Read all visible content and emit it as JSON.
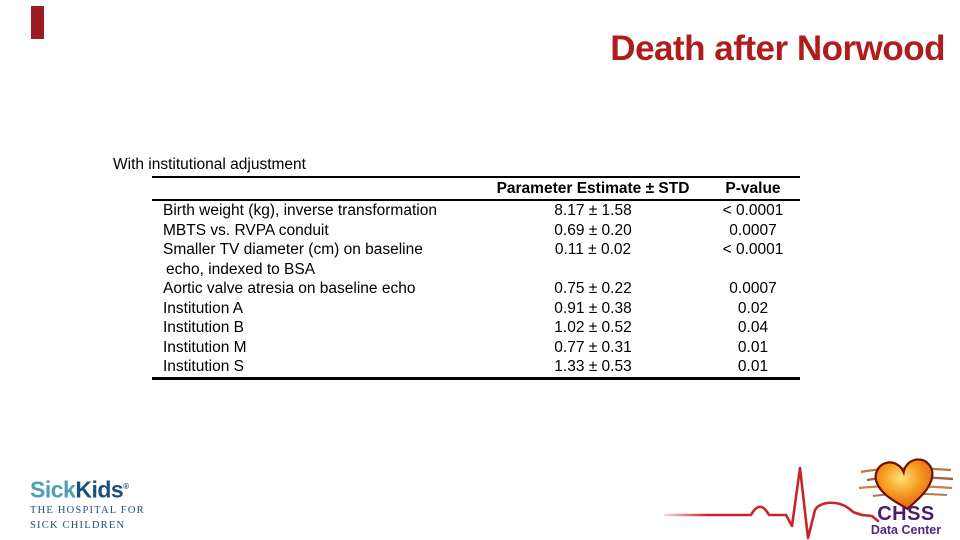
{
  "slide": {
    "title": "Death after Norwood"
  },
  "colors": {
    "title_red": "#B01C1C",
    "accent_red": "#9E1B24",
    "table_text": "#000000",
    "sickkids_teal": "#4E9FB5",
    "sickkids_navy": "#1A507E",
    "chss_purple": "#45206E",
    "ekg_red": "#C8252B",
    "heart_orange": "#F59B1E"
  },
  "table": {
    "caption": "With institutional adjustment",
    "header_estimate": "Parameter Estimate ± STD",
    "header_pvalue": "P-value",
    "rows": [
      {
        "param": "Birth weight (kg), inverse transformation",
        "param2": "",
        "estimate": "8.17 ± 1.58",
        "p": "< 0.0001"
      },
      {
        "param": "MBTS vs. RVPA conduit",
        "param2": "",
        "estimate": "0.69 ± 0.20",
        "p": "0.0007"
      },
      {
        "param": "Smaller TV diameter (cm) on baseline",
        "param2": "echo, indexed to BSA",
        "estimate": "0.11 ± 0.02",
        "p": "< 0.0001"
      },
      {
        "param": "Aortic valve atresia on baseline echo",
        "param2": "",
        "estimate": "0.75 ± 0.22",
        "p": "0.0007"
      },
      {
        "param": "Institution A",
        "param2": "",
        "estimate": "0.91 ± 0.38",
        "p": "0.02"
      },
      {
        "param": "Institution B",
        "param2": "",
        "estimate": "1.02 ± 0.52",
        "p": "0.04"
      },
      {
        "param": "Institution M",
        "param2": "",
        "estimate": "0.77 ± 0.31",
        "p": "0.01"
      },
      {
        "param": "Institution S",
        "param2": "",
        "estimate": "1.33 ± 0.53",
        "p": "0.01"
      }
    ]
  },
  "footer": {
    "sickkids": {
      "word1": "Sick",
      "word2": "Kids",
      "reg": "®",
      "tagline1": "THE HOSPITAL FOR",
      "tagline2": "SICK CHILDREN"
    },
    "chss": {
      "name": "CHSS",
      "subtitle": "Data Center"
    }
  }
}
